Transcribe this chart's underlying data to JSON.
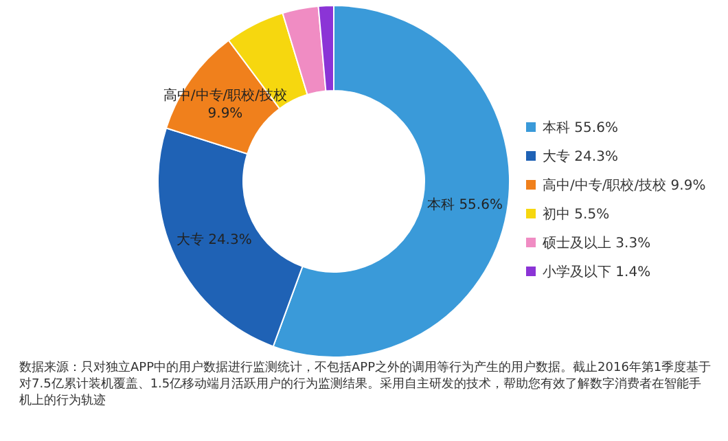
{
  "chart_data": {
    "type": "donut",
    "categories": [
      "本科 55.6%",
      "大专 24.3%",
      "高中/中专/职校/技校 9.9%",
      "初中 5.5%",
      "硕士及以上 3.3%",
      "小学及以下 1.4%"
    ],
    "values": [
      55.6,
      24.3,
      9.9,
      5.5,
      3.3,
      1.4
    ],
    "colors": [
      "#3a9ad9",
      "#1f62b5",
      "#f0801c",
      "#f6d70f",
      "#f08cc3",
      "#8b34d6"
    ],
    "value_labels": [
      "本科 55.6%",
      "大专 24.3%",
      "高中/中专/职校/技校 9.9%",
      null,
      null,
      null
    ],
    "legend": "right",
    "annotations": [
      "数据来源：只对独立APP中的用户数据进行监测统计，不包括APP之外的调用等行为产生的用户数据。截止2016年第1季度基于对7.5亿累计装机覆盖、1.5亿移动端月活跃用户的行为监测结果。采用自主研发的技术，帮助您有效了解数字消费者在智能手机上的行为轨迹"
    ]
  }
}
